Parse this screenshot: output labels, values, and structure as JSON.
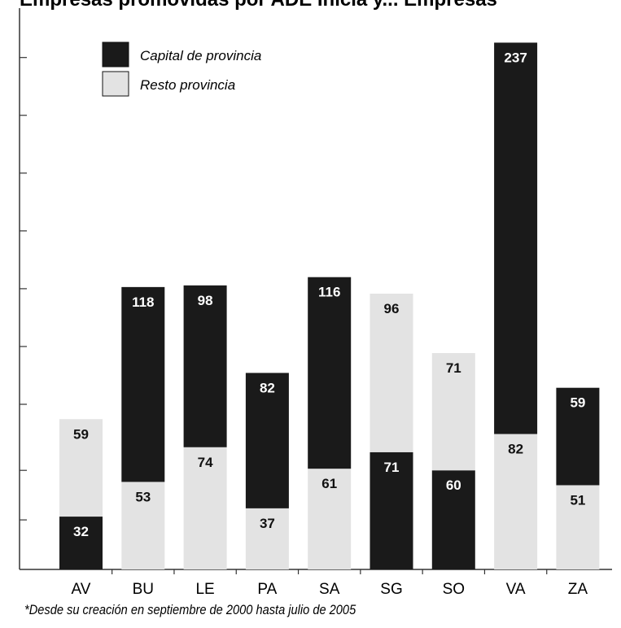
{
  "title": "Empresas promovidas por ADE Inicia y... Empresas",
  "footnote": "*Desde su creación en septiembre de 2000 hasta julio de 2005",
  "colors": {
    "capital": "#1a1a1a",
    "resto": "#e3e3e3",
    "axis": "#333333"
  },
  "chart_data": {
    "type": "bar",
    "stacked": true,
    "categories": [
      "AV",
      "BU",
      "LE",
      "PA",
      "SA",
      "SG",
      "SO",
      "VA",
      "ZA"
    ],
    "series": [
      {
        "name": "Resto provincia",
        "values": [
          59,
          53,
          74,
          37,
          61,
          96,
          71,
          82,
          51
        ]
      },
      {
        "name": "Capital de provincia",
        "values": [
          32,
          118,
          98,
          82,
          116,
          71,
          60,
          237,
          59
        ]
      }
    ],
    "stack_order": [
      [
        "Capital de provincia",
        "Resto provincia"
      ],
      [
        "Resto provincia",
        "Capital de provincia"
      ],
      [
        "Resto provincia",
        "Capital de provincia"
      ],
      [
        "Resto provincia",
        "Capital de provincia"
      ],
      [
        "Resto provincia",
        "Capital de provincia"
      ],
      [
        "Capital de provincia",
        "Resto provincia"
      ],
      [
        "Capital de provincia",
        "Resto provincia"
      ],
      [
        "Resto provincia",
        "Capital de provincia"
      ],
      [
        "Resto provincia",
        "Capital de provincia"
      ]
    ],
    "legend": [
      "Capital de provincia",
      "Resto provincia"
    ],
    "legend_position": "top-left",
    "ylim": [
      0,
      330
    ],
    "ytick_labels": false
  }
}
